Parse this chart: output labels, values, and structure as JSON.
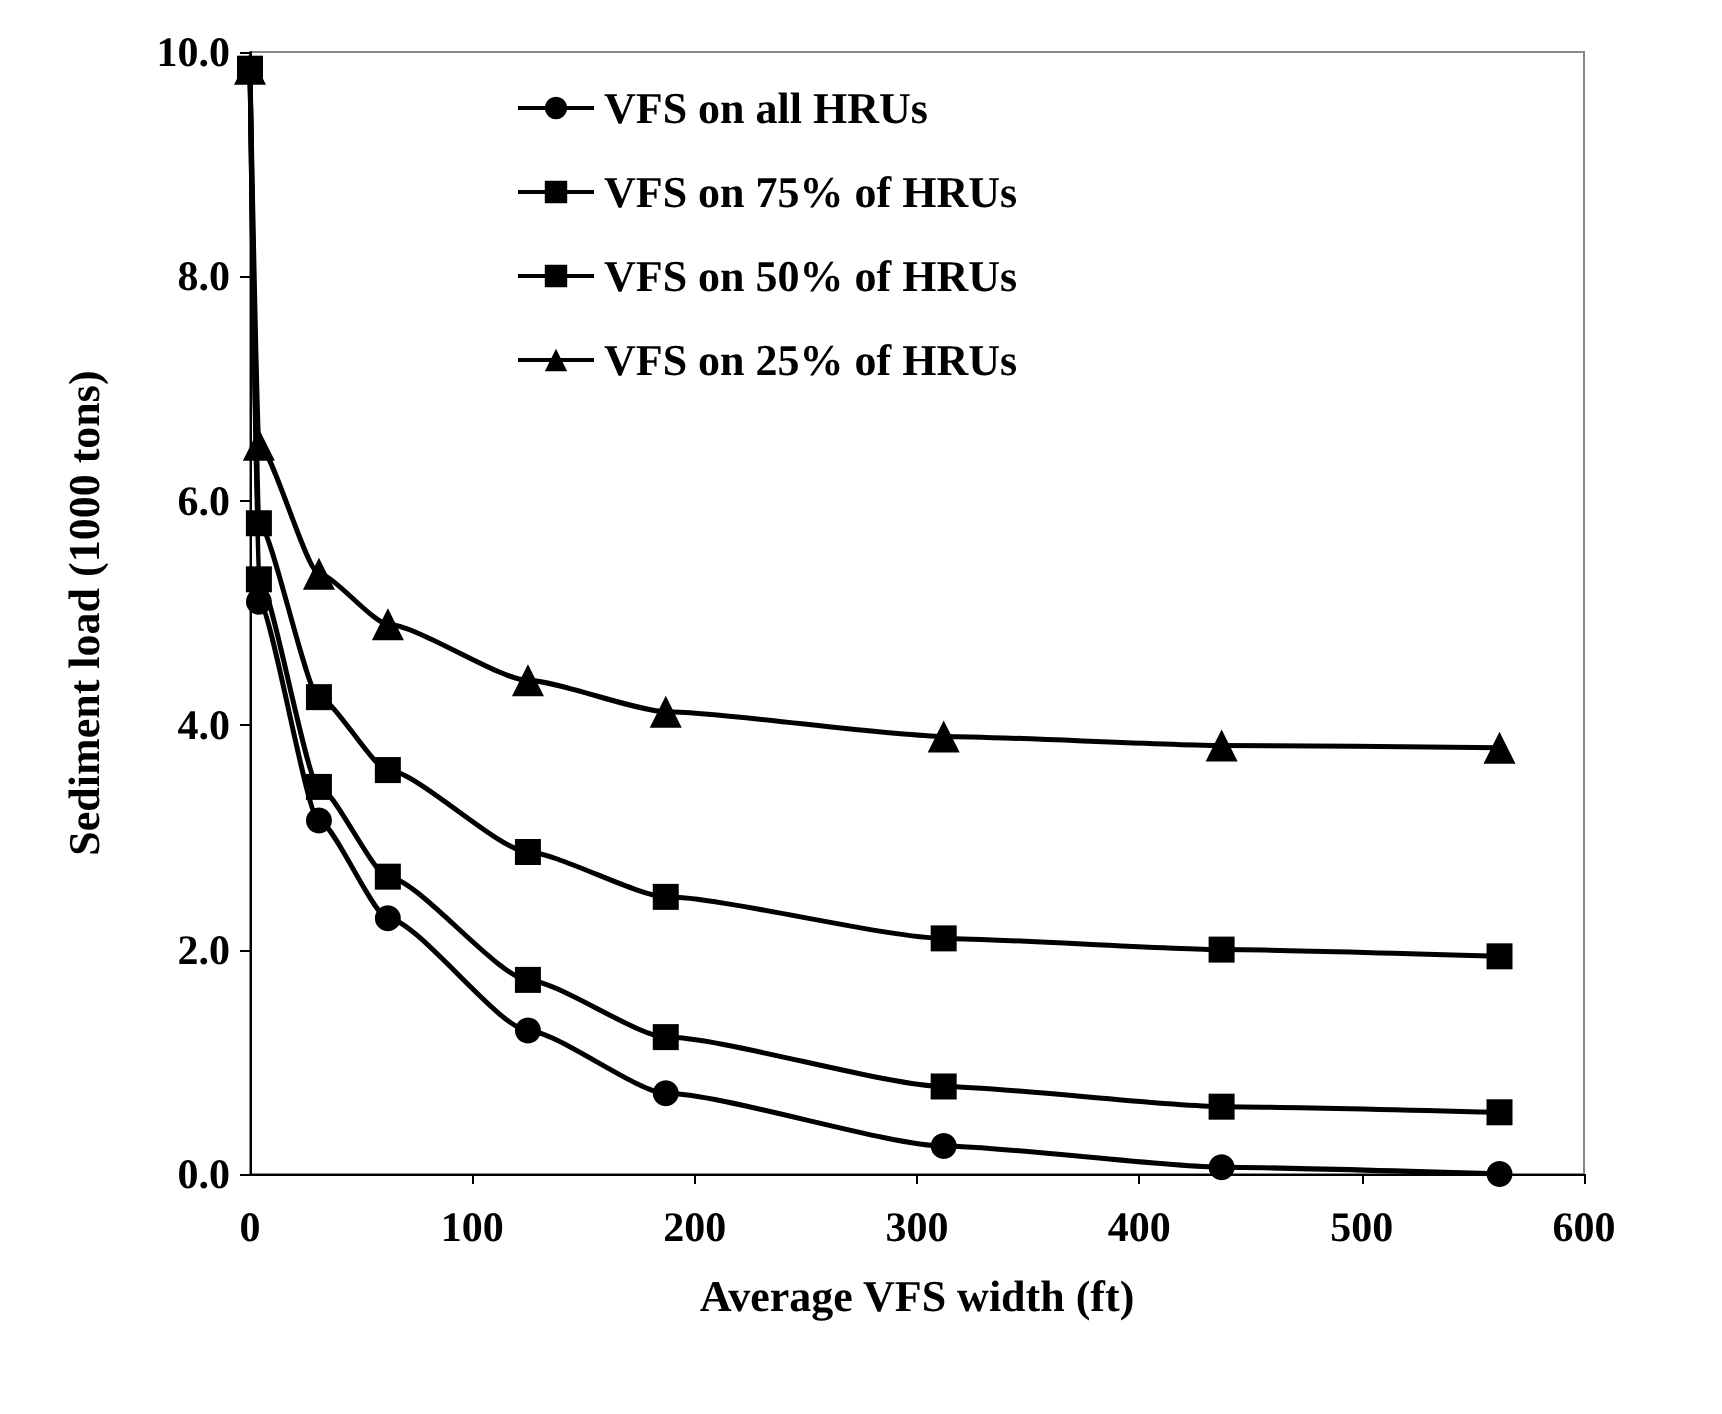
{
  "chart_data": {
    "type": "line",
    "xlabel": "Average VFS width (ft)",
    "ylabel": "Sediment load (1000 tons)",
    "x": [
      0,
      4,
      31,
      62,
      125,
      187,
      312,
      437,
      562
    ],
    "series": [
      {
        "name": "VFS on all HRUs",
        "color": "#000000",
        "marker": "circle",
        "values": [
          9.85,
          5.1,
          3.15,
          2.28,
          1.28,
          0.72,
          0.25,
          0.06,
          0.0
        ]
      },
      {
        "name": "VFS on 75% of HRUs",
        "color": "#000000",
        "marker": "square",
        "values": [
          9.85,
          5.3,
          3.45,
          2.65,
          1.73,
          1.22,
          0.78,
          0.6,
          0.55
        ]
      },
      {
        "name": "VFS on 50% of HRUs",
        "color": "#000000",
        "marker": "square",
        "values": [
          9.85,
          5.8,
          4.25,
          3.6,
          2.87,
          2.47,
          2.1,
          2.0,
          1.94
        ]
      },
      {
        "name": "VFS on 25% of HRUs",
        "color": "#000000",
        "marker": "triangle",
        "values": [
          9.85,
          6.5,
          5.35,
          4.9,
          4.4,
          4.12,
          3.9,
          3.82,
          3.8
        ]
      }
    ],
    "xlim": [
      0,
      600
    ],
    "xticks": [
      0,
      100,
      200,
      300,
      400,
      500,
      600
    ],
    "ylim": [
      0,
      10
    ],
    "yticks": [
      {
        "value": 0,
        "label": "0.0"
      },
      {
        "value": 2,
        "label": "2.0"
      },
      {
        "value": 4,
        "label": "4.0"
      },
      {
        "value": 6,
        "label": "6.0"
      },
      {
        "value": 8,
        "label": "8.0"
      },
      {
        "value": 10,
        "label": "10.0"
      }
    ],
    "legend": "top",
    "grid": false,
    "line_style": "solid"
  }
}
